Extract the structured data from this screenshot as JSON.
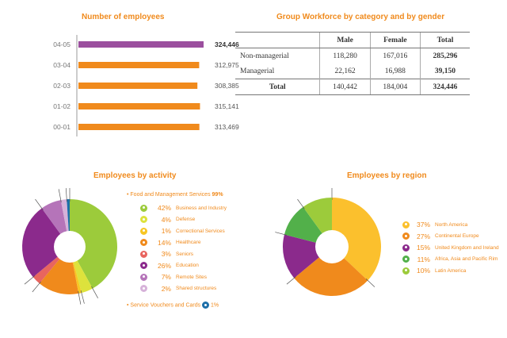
{
  "titles": {
    "employees": "Number of employees",
    "workforce": "Group Workforce by category and by gender",
    "activity": "Employees by activity",
    "region": "Employees by region"
  },
  "chart_data": [
    {
      "type": "bar",
      "orientation": "horizontal",
      "title": "Number of employees",
      "categories": [
        "04-05",
        "03-04",
        "02-03",
        "01-02",
        "00-01"
      ],
      "values": [
        324446,
        312975,
        308385,
        315141,
        313469
      ],
      "labels": [
        "324,446",
        "312,975",
        "308,385",
        "315,141",
        "313,469"
      ],
      "highlight_index": 0,
      "colors": {
        "highlight": "#9b4f9e",
        "default": "#f08a1c"
      }
    },
    {
      "type": "pie",
      "title": "Employees by activity",
      "header": {
        "label": "Food and Management Services",
        "pct": "99%"
      },
      "slices": [
        {
          "label": "Business and Industry",
          "pct": "42%",
          "value": 42,
          "color": "#9ccb3b"
        },
        {
          "label": "Defense",
          "pct": "4%",
          "value": 4,
          "color": "#dde23c"
        },
        {
          "label": "Correctional Services",
          "pct": "1%",
          "value": 1,
          "color": "#f7c623"
        },
        {
          "label": "Healthcare",
          "pct": "14%",
          "value": 14,
          "color": "#f08a1c"
        },
        {
          "label": "Seniors",
          "pct": "3%",
          "value": 3,
          "color": "#e8655f"
        },
        {
          "label": "Education",
          "pct": "26%",
          "value": 26,
          "color": "#8b2a8c"
        },
        {
          "label": "Remote Sites",
          "pct": "7%",
          "value": 7,
          "color": "#b574b9"
        },
        {
          "label": "Shared structures",
          "pct": "2%",
          "value": 2,
          "color": "#d6b2d9"
        },
        {
          "label": "Service Vouchers and Cards",
          "pct": "1%",
          "value": 1,
          "color": "#1d6fa8"
        }
      ],
      "footer": {
        "label": "Service Vouchers and Cards",
        "pct": "1%"
      }
    },
    {
      "type": "pie",
      "title": "Employees by region",
      "slices": [
        {
          "label": "North America",
          "pct": "37%",
          "value": 37,
          "color": "#fbc02d"
        },
        {
          "label": "Continental Europe",
          "pct": "27%",
          "value": 27,
          "color": "#f08a1c"
        },
        {
          "label": "United Kingdom and Ireland",
          "pct": "15%",
          "value": 15,
          "color": "#8b2a8c"
        },
        {
          "label": "Africa, Asia and Pacific Rim",
          "pct": "11%",
          "value": 11,
          "color": "#52b04a"
        },
        {
          "label": "Latin America",
          "pct": "10%",
          "value": 10,
          "color": "#9ccb3b"
        }
      ]
    }
  ],
  "workforce_table": {
    "headers": [
      "",
      "Male",
      "Female",
      "Total"
    ],
    "rows": [
      {
        "label": "Non-managerial",
        "male": "118,280",
        "female": "167,016",
        "total": "285,296"
      },
      {
        "label": "Managerial",
        "male": "22,162",
        "female": "16,988",
        "total": "39,150"
      }
    ],
    "total": {
      "label": "Total",
      "male": "140,442",
      "female": "184,004",
      "total": "324,446"
    }
  }
}
